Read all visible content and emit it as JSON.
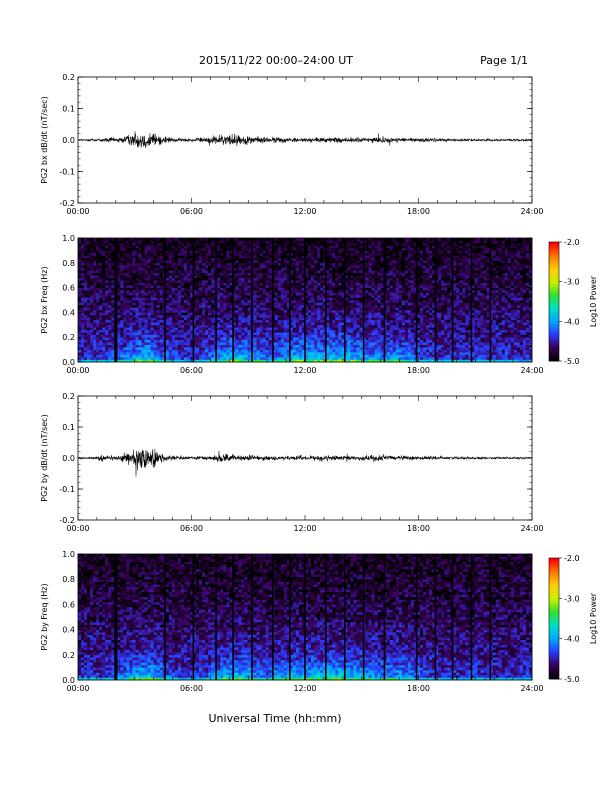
{
  "header": {
    "title": "2015/11/22  00:00–24:00 UT",
    "page": "Page 1/1"
  },
  "xlabel": "Universal Time (hh:mm)",
  "colors": {
    "trace": "#000000",
    "spectro_cmap": [
      "#000000",
      "#3a005a",
      "#2a3cff",
      "#00a8ff",
      "#00e0c8",
      "#30e030",
      "#c8f000",
      "#ffd000",
      "#ff7a00",
      "#ff0000"
    ]
  },
  "chart_data": [
    {
      "type": "line",
      "ylabel": "PG2 bx dB/dt (nT/sec)",
      "xlim": [
        0,
        24
      ],
      "ylim": [
        -0.2,
        0.2
      ],
      "x_tick_labels": [
        "00:00",
        "06:00",
        "12:00",
        "18:00",
        "24:00"
      ],
      "y_tick_values": [
        -0.2,
        -0.1,
        0.0,
        0.1,
        0.2
      ],
      "y_tick_labels": [
        "-0.2",
        "-0.1",
        "0.0",
        "0.1",
        "0.2"
      ],
      "envelope": {
        "x": [
          0,
          1,
          1.5,
          2,
          2.5,
          3,
          3.5,
          4,
          4.5,
          5,
          6,
          6.5,
          7,
          7.5,
          8,
          8.5,
          9,
          10,
          11,
          12,
          13,
          14,
          15,
          16,
          16.5,
          17,
          18,
          19,
          20,
          21,
          22,
          23,
          24
        ],
        "amplitude": [
          0.004,
          0.006,
          0.014,
          0.01,
          0.02,
          0.032,
          0.045,
          0.04,
          0.018,
          0.01,
          0.008,
          0.012,
          0.015,
          0.025,
          0.03,
          0.022,
          0.02,
          0.015,
          0.012,
          0.01,
          0.012,
          0.014,
          0.012,
          0.016,
          0.014,
          0.01,
          0.01,
          0.008,
          0.006,
          0.006,
          0.005,
          0.005,
          0.005
        ]
      }
    },
    {
      "type": "heatmap",
      "ylabel": "PG2 bx Freq (Hz)",
      "xlim": [
        0,
        24
      ],
      "ylim": [
        0,
        1.0
      ],
      "x_tick_labels": [
        "00:00",
        "06:00",
        "12:00",
        "18:00",
        "24:00"
      ],
      "y_tick_values": [
        0.0,
        0.2,
        0.4,
        0.6,
        0.8,
        1.0
      ],
      "y_tick_labels": [
        "0.0",
        "0.2",
        "0.4",
        "0.6",
        "0.8",
        "1.0"
      ],
      "colorbar": {
        "label": "Log10 Power",
        "range": [
          -5.0,
          -2.0
        ],
        "tick_values": [
          -5.0,
          -4.0,
          -3.0,
          -2.0
        ],
        "tick_labels": [
          "-5.0",
          "-4.0",
          "-3.0",
          "-2.0"
        ]
      },
      "gap_times": [
        2.0,
        4.6,
        6.1,
        7.3,
        8.2,
        9.2,
        10.3,
        11.2,
        12.0,
        13.1,
        14.1,
        15.1,
        16.2,
        17.9,
        18.9,
        19.8,
        20.8,
        21.8
      ]
    },
    {
      "type": "line",
      "ylabel": "PG2 by dB/dt (nT/sec)",
      "xlim": [
        0,
        24
      ],
      "ylim": [
        -0.2,
        0.2
      ],
      "x_tick_labels": [
        "00:00",
        "06:00",
        "12:00",
        "18:00",
        "24:00"
      ],
      "y_tick_values": [
        -0.2,
        -0.1,
        0.0,
        0.1,
        0.2
      ],
      "y_tick_labels": [
        "-0.2",
        "-0.1",
        "0.0",
        "0.1",
        "0.2"
      ],
      "envelope": {
        "x": [
          0,
          1,
          1.3,
          1.5,
          2,
          2.5,
          3,
          3.5,
          4,
          4.5,
          5,
          6,
          7,
          7.5,
          8,
          8.5,
          9,
          10,
          11,
          12,
          12.5,
          13,
          14,
          15,
          16,
          16.5,
          17,
          18,
          19,
          20,
          21,
          22,
          23,
          24
        ],
        "amplitude": [
          0.004,
          0.006,
          0.03,
          0.01,
          0.012,
          0.025,
          0.04,
          0.06,
          0.045,
          0.02,
          0.012,
          0.008,
          0.01,
          0.02,
          0.016,
          0.015,
          0.014,
          0.012,
          0.01,
          0.01,
          0.012,
          0.014,
          0.01,
          0.012,
          0.018,
          0.012,
          0.01,
          0.01,
          0.008,
          0.006,
          0.006,
          0.005,
          0.005,
          0.005
        ]
      }
    },
    {
      "type": "heatmap",
      "ylabel": "PG2 by Freq (Hz)",
      "xlim": [
        0,
        24
      ],
      "ylim": [
        0,
        1.0
      ],
      "x_tick_labels": [
        "00:00",
        "06:00",
        "12:00",
        "18:00",
        "24:00"
      ],
      "y_tick_values": [
        0.0,
        0.2,
        0.4,
        0.6,
        0.8,
        1.0
      ],
      "y_tick_labels": [
        "0.0",
        "0.2",
        "0.4",
        "0.6",
        "0.8",
        "1.0"
      ],
      "colorbar": {
        "label": "Log10 Power",
        "range": [
          -5.0,
          -2.0
        ],
        "tick_values": [
          -5.0,
          -4.0,
          -3.0,
          -2.0
        ],
        "tick_labels": [
          "-5.0",
          "-4.0",
          "-3.0",
          "-2.0"
        ]
      },
      "gap_times": [
        2.0,
        4.6,
        6.1,
        7.3,
        8.2,
        9.2,
        10.3,
        11.2,
        12.0,
        13.1,
        14.1,
        15.1,
        16.2,
        17.9,
        18.9,
        19.8,
        20.8,
        21.8
      ]
    }
  ]
}
